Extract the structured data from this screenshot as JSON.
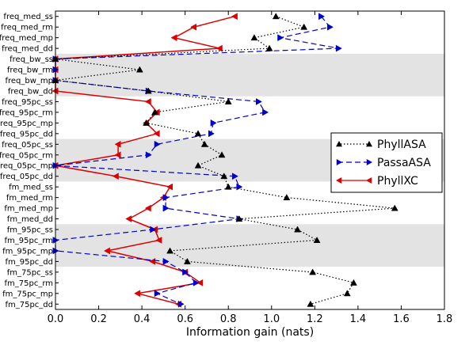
{
  "chart_data": {
    "type": "line",
    "orientation": "horizontal",
    "xlabel": "Information gain (nats)",
    "xlim": [
      0.0,
      1.8
    ],
    "xticks": [
      "0.0",
      "0.2",
      "0.4",
      "0.6",
      "0.8",
      "1.0",
      "1.2",
      "1.4",
      "1.6",
      "1.8"
    ],
    "categories": [
      "freq_med_ss",
      "freq_med_rm",
      "freq_med_mp",
      "freq_med_dd",
      "freq_bw_ss",
      "freq_bw_rm",
      "freq_bw_mp",
      "freq_bw_dd",
      "freq_95pc_ss",
      "freq_95pc_rm",
      "freq_95pc_mp",
      "freq_95pc_dd",
      "freq_05pc_ss",
      "freq_05pc_rm",
      "freq_05pc_mp",
      "freq_05pc_dd",
      "fm_med_ss",
      "fm_med_rm",
      "fm_med_mp",
      "fm_med_dd",
      "fm_95pc_ss",
      "fm_95pc_rm",
      "fm_95pc_mp",
      "fm_95pc_dd",
      "fm_75pc_ss",
      "fm_75pc_rm",
      "fm_75pc_mp",
      "fm_75pc_dd"
    ],
    "shaded_bands": [
      [
        4,
        7
      ],
      [
        12,
        15
      ],
      [
        20,
        23
      ]
    ],
    "legend_position": "right",
    "series": [
      {
        "name": "PhyllASA",
        "color": "#000000",
        "line_style": "dotted",
        "marker": "triangle-up",
        "values": [
          1.02,
          1.15,
          0.92,
          0.99,
          0.0,
          0.39,
          0.0,
          0.43,
          0.8,
          0.46,
          0.42,
          0.66,
          0.69,
          0.77,
          0.66,
          0.78,
          0.8,
          1.07,
          1.57,
          0.85,
          1.12,
          1.21,
          0.53,
          0.61,
          1.19,
          1.38,
          1.35,
          1.18
        ]
      },
      {
        "name": "PassaASA",
        "color": "#0000cc",
        "line_style": "dashed",
        "marker": "triangle-right",
        "values": [
          1.23,
          1.27,
          1.04,
          1.31,
          0.0,
          0.0,
          0.0,
          0.43,
          0.94,
          0.97,
          0.73,
          0.72,
          0.47,
          0.43,
          0.0,
          0.83,
          0.85,
          0.51,
          0.51,
          0.85,
          0.45,
          0.0,
          0.0,
          0.51,
          0.6,
          0.65,
          0.47,
          0.58
        ]
      },
      {
        "name": "PhyllXC",
        "color": "#dd0000",
        "line_style": "solid",
        "marker": "triangle-left",
        "values": [
          0.83,
          0.64,
          0.55,
          0.76,
          0.0,
          0.0,
          0.0,
          0.0,
          0.43,
          0.47,
          0.42,
          0.47,
          0.29,
          0.29,
          0.0,
          0.28,
          0.53,
          0.5,
          0.43,
          0.34,
          0.46,
          0.48,
          0.24,
          0.45,
          0.6,
          0.67,
          0.38,
          0.57
        ]
      }
    ]
  }
}
